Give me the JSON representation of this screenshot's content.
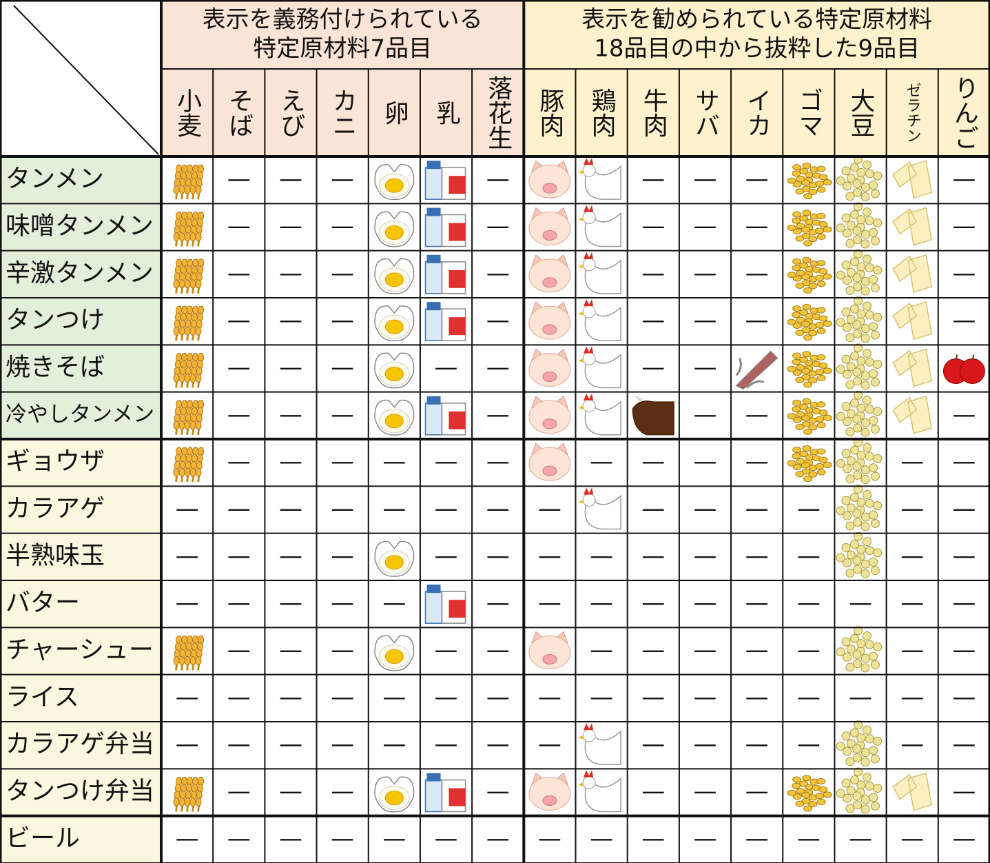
{
  "groups": [
    {
      "title_lines": [
        "表示を義務付けられている",
        "特定原材料7品目"
      ]
    },
    {
      "title_lines": [
        "表示を勧められている特定原材料",
        "18品目の中から抜粋した9品目"
      ]
    }
  ],
  "columns": [
    {
      "label": "小麦"
    },
    {
      "label": "そば"
    },
    {
      "label": "えび"
    },
    {
      "label": "カニ"
    },
    {
      "label": "卵"
    },
    {
      "label": "乳"
    },
    {
      "label": "落花生"
    },
    {
      "label": "豚肉"
    },
    {
      "label": "鶏肉"
    },
    {
      "label": "牛肉"
    },
    {
      "label": "サバ"
    },
    {
      "label": "イカ"
    },
    {
      "label": "ゴマ"
    },
    {
      "label": "大豆"
    },
    {
      "label": "ゼラチン"
    },
    {
      "label": "りんご"
    }
  ],
  "rows": [
    {
      "label": "タンメン",
      "cells": [
        null,
        "—",
        "—",
        "—",
        null,
        null,
        "—",
        null,
        null,
        "—",
        "—",
        "—",
        null,
        null,
        null,
        "—"
      ]
    },
    {
      "label": "味噌タンメン",
      "cells": [
        null,
        "—",
        "—",
        "—",
        null,
        null,
        "—",
        null,
        null,
        "—",
        "—",
        "—",
        null,
        null,
        null,
        "—"
      ]
    },
    {
      "label": "辛激タンメン",
      "cells": [
        null,
        "—",
        "—",
        "—",
        null,
        null,
        "—",
        null,
        null,
        "—",
        "—",
        "—",
        null,
        null,
        null,
        "—"
      ]
    },
    {
      "label": "タンつけ",
      "cells": [
        null,
        "—",
        "—",
        "—",
        null,
        null,
        "—",
        null,
        null,
        "—",
        "—",
        "—",
        null,
        null,
        null,
        "—"
      ]
    },
    {
      "label": "焼きそば",
      "cells": [
        null,
        "—",
        "—",
        "—",
        null,
        "—",
        "—",
        null,
        null,
        "—",
        "—",
        null,
        null,
        null,
        null,
        null
      ]
    },
    {
      "label": "冷やしタンメン",
      "cells": [
        null,
        "—",
        "—",
        "—",
        null,
        null,
        "—",
        null,
        null,
        null,
        "—",
        "—",
        null,
        null,
        null,
        "—"
      ]
    },
    {
      "label": "ギョウザ",
      "cells": [
        null,
        "—",
        "—",
        "—",
        "—",
        "—",
        "—",
        null,
        "—",
        "—",
        "—",
        "—",
        null,
        null,
        "—",
        "—"
      ]
    },
    {
      "label": "カラアゲ",
      "cells": [
        "—",
        "—",
        "—",
        "—",
        "—",
        "—",
        "—",
        "—",
        null,
        "—",
        "—",
        "—",
        "—",
        null,
        "—",
        "—"
      ]
    },
    {
      "label": "半熟味玉",
      "cells": [
        "—",
        "—",
        "—",
        "—",
        null,
        "—",
        "—",
        "—",
        "—",
        "—",
        "—",
        "—",
        "—",
        null,
        "—",
        "—"
      ]
    },
    {
      "label": "バター",
      "cells": [
        "—",
        "—",
        "—",
        "—",
        "—",
        null,
        "—",
        "—",
        "—",
        "—",
        "—",
        "—",
        "—",
        "—",
        "—",
        "—"
      ]
    },
    {
      "label": "チャーシュー",
      "cells": [
        null,
        "—",
        "—",
        "—",
        null,
        "—",
        "—",
        null,
        "—",
        "—",
        "—",
        "—",
        "—",
        null,
        "—",
        "—"
      ]
    },
    {
      "label": "ライス",
      "cells": [
        "—",
        "—",
        "—",
        "—",
        "—",
        "—",
        "—",
        "—",
        "—",
        "—",
        "—",
        "—",
        "—",
        "—",
        "—",
        "—"
      ]
    },
    {
      "label": "カラアゲ弁当",
      "cells": [
        "—",
        "—",
        "—",
        "—",
        "—",
        "—",
        "—",
        "—",
        null,
        "—",
        "—",
        "—",
        "—",
        null,
        "—",
        "—"
      ]
    },
    {
      "label": "タンつけ弁当",
      "cells": [
        null,
        "—",
        "—",
        "—",
        null,
        null,
        "—",
        null,
        null,
        "—",
        "—",
        "—",
        null,
        null,
        null,
        "—"
      ]
    },
    {
      "label": "ビール",
      "cells": [
        "—",
        "—",
        "—",
        "—",
        "—",
        "—",
        "—",
        "—",
        "—",
        "—",
        "—",
        "—",
        "—",
        "—",
        "—",
        "—"
      ]
    }
  ]
}
